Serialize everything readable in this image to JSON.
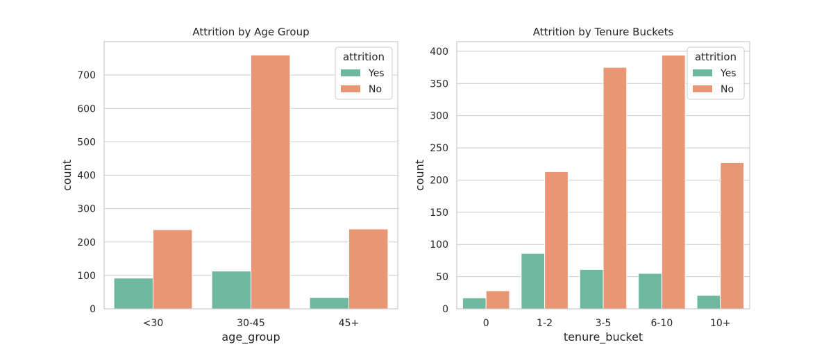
{
  "chart_data": [
    {
      "type": "bar",
      "title": "Attrition by Age Group",
      "xlabel": "age_group",
      "ylabel": "count",
      "categories": [
        "<30",
        "30-45",
        "45+"
      ],
      "ylim": [
        0,
        800
      ],
      "yticks": [
        0,
        100,
        200,
        300,
        400,
        500,
        600,
        700
      ],
      "grid": true,
      "legend": {
        "title": "attrition",
        "placement": "top-right"
      },
      "series": [
        {
          "name": "Yes",
          "color": "#6fb8a0",
          "values": [
            92,
            113,
            34
          ]
        },
        {
          "name": "No",
          "color": "#e99674",
          "values": [
            237,
            760,
            239
          ]
        }
      ]
    },
    {
      "type": "bar",
      "title": "Attrition by Tenure Buckets",
      "xlabel": "tenure_bucket",
      "ylabel": "count",
      "categories": [
        "0",
        "1-2",
        "3-5",
        "6-10",
        "10+"
      ],
      "ylim": [
        0,
        415
      ],
      "yticks": [
        0,
        50,
        100,
        150,
        200,
        250,
        300,
        350,
        400
      ],
      "grid": true,
      "legend": {
        "title": "attrition",
        "placement": "top-right"
      },
      "series": [
        {
          "name": "Yes",
          "color": "#6fb8a0",
          "values": [
            17,
            86,
            61,
            55,
            21
          ]
        },
        {
          "name": "No",
          "color": "#e99674",
          "values": [
            28,
            213,
            375,
            394,
            227
          ]
        }
      ]
    }
  ]
}
